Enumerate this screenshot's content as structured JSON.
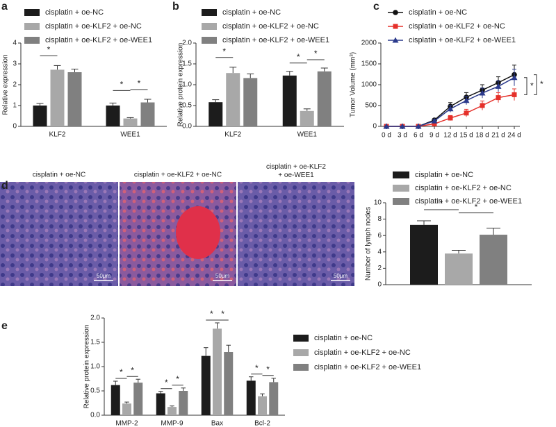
{
  "chart_data": [
    {
      "type": "bar",
      "panel": "a",
      "y_label": "Relative expression",
      "categories": [
        "KLF2",
        "WEE1"
      ],
      "series": [
        {
          "name": "cisplatin + oe-NC",
          "color": "#1c1c1c",
          "values": [
            1.0,
            1.0
          ],
          "errors": [
            0.1,
            0.12
          ]
        },
        {
          "name": "cisplatin + oe-KLF2 + oe-NC",
          "color": "#a8a8a8",
          "values": [
            2.72,
            0.38
          ],
          "errors": [
            0.2,
            0.04
          ]
        },
        {
          "name": "cisplatin + oe-KLF2 + oe-WEE1",
          "color": "#808080",
          "values": [
            2.6,
            1.15
          ],
          "errors": [
            0.15,
            0.15
          ]
        }
      ],
      "ylim": [
        0,
        4
      ],
      "yticks": [
        0,
        1,
        2,
        3,
        4
      ],
      "annotations": [
        "*",
        "*",
        "*"
      ]
    },
    {
      "type": "bar",
      "panel": "b",
      "y_label": "Relative protein expression",
      "categories": [
        "KLF2",
        "WEE1"
      ],
      "series": [
        {
          "name": "cisplatin + oe-NC",
          "color": "#1c1c1c",
          "values": [
            0.58,
            1.22
          ],
          "errors": [
            0.06,
            0.1
          ]
        },
        {
          "name": "cisplatin + oe-KLF2 + oe-NC",
          "color": "#a8a8a8",
          "values": [
            1.28,
            0.37
          ],
          "errors": [
            0.14,
            0.05
          ]
        },
        {
          "name": "cisplatin + oe-KLF2 + oe-WEE1",
          "color": "#808080",
          "values": [
            1.16,
            1.32
          ],
          "errors": [
            0.1,
            0.08
          ]
        }
      ],
      "ylim": [
        0,
        2
      ],
      "yticks": [
        {
          "value": 0,
          "label": "0.0"
        },
        {
          "value": 0.5,
          "label": "0.5"
        },
        {
          "value": 1,
          "label": "1.0"
        },
        {
          "value": 1.5,
          "label": "1.5"
        },
        {
          "value": 2,
          "label": "2.0"
        }
      ],
      "annotations": [
        "*",
        "*",
        "*"
      ]
    },
    {
      "type": "line",
      "panel": "c",
      "y_label": "Tumor Volume (mm³)",
      "categories": [
        "0 d",
        "3 d",
        "6 d",
        "9 d",
        "12 d",
        "15 d",
        "18 d",
        "21 d",
        "24 d"
      ],
      "series": [
        {
          "name": "cisplatin + oe-NC",
          "color": "#111111",
          "marker": "circle",
          "values": [
            0,
            0,
            0,
            150,
            480,
            700,
            870,
            1050,
            1240
          ],
          "errors": [
            0,
            0,
            0,
            30,
            90,
            110,
            130,
            140,
            230
          ]
        },
        {
          "name": "cisplatin + oe-KLF2 + oe-NC",
          "color": "#e5302a",
          "marker": "square",
          "values": [
            0,
            0,
            0,
            60,
            200,
            320,
            500,
            690,
            760
          ],
          "errors": [
            0,
            0,
            0,
            20,
            60,
            90,
            110,
            120,
            140
          ]
        },
        {
          "name": "cisplatin + oe-KLF2 + oe-WEE1",
          "color": "#2b3a8c",
          "marker": "triangle",
          "values": [
            0,
            0,
            0,
            130,
            420,
            620,
            800,
            960,
            1170
          ],
          "errors": [
            0,
            0,
            0,
            30,
            80,
            100,
            120,
            130,
            200
          ]
        }
      ],
      "ylim": [
        0,
        2000
      ],
      "yticks": [
        0,
        500,
        1000,
        1500,
        2000
      ],
      "annotations": [
        "*",
        "*"
      ]
    },
    {
      "type": "bar",
      "panel": "d",
      "y_label": "Number of lymph nodes",
      "categories": [
        null
      ],
      "series": [
        {
          "name": "cisplatin + oe-NC",
          "color": "#1c1c1c",
          "values": [
            7.3
          ],
          "errors": [
            0.5
          ]
        },
        {
          "name": "cisplatin + oe-KLF2 + oe-NC",
          "color": "#a8a8a8",
          "values": [
            3.8
          ],
          "errors": [
            0.4
          ]
        },
        {
          "name": "cisplatin + oe-KLF2 + oe-WEE1",
          "color": "#808080",
          "values": [
            6.1
          ],
          "errors": [
            0.8
          ]
        }
      ],
      "ylim": [
        0,
        10
      ],
      "yticks": [
        0,
        2,
        4,
        6,
        8,
        10
      ],
      "annotations": [
        "*",
        "*"
      ],
      "images": [
        {
          "caption": "cisplatin + oe-NC",
          "scale_bar": "50μm"
        },
        {
          "caption": "cisplatin + oe-KLF2 + oe-NC",
          "scale_bar": "50μm"
        },
        {
          "caption": "cisplatin + oe-KLF2\n+ oe-WEE1",
          "scale_bar": "50μm"
        }
      ]
    },
    {
      "type": "bar",
      "panel": "e",
      "y_label": "Relative protein expression",
      "categories": [
        "MMP-2",
        "MMP-9",
        "Bax",
        "Bcl-2"
      ],
      "series": [
        {
          "name": "cisplatin + oe-NC",
          "color": "#1c1c1c",
          "values": [
            0.62,
            0.45,
            1.22,
            0.71
          ],
          "errors": [
            0.08,
            0.04,
            0.17,
            0.08
          ]
        },
        {
          "name": "cisplatin + oe-KLF2 + oe-NC",
          "color": "#a8a8a8",
          "values": [
            0.24,
            0.17,
            1.78,
            0.39
          ],
          "errors": [
            0.03,
            0.02,
            0.12,
            0.05
          ]
        },
        {
          "name": "cisplatin + oe-KLF2 + oe-WEE1",
          "color": "#808080",
          "values": [
            0.67,
            0.5,
            1.3,
            0.68
          ],
          "errors": [
            0.07,
            0.06,
            0.14,
            0.08
          ]
        }
      ],
      "ylim": [
        0,
        2
      ],
      "yticks": [
        {
          "value": 0,
          "label": "0.0"
        },
        {
          "value": 0.5,
          "label": "0.5"
        },
        {
          "value": 1,
          "label": "1.0"
        },
        {
          "value": 1.5,
          "label": "1.5"
        },
        {
          "value": 2,
          "label": "2.0"
        }
      ],
      "annotations": [
        "*",
        "*",
        "*",
        "*",
        "*",
        "*",
        "*",
        "*"
      ]
    }
  ]
}
